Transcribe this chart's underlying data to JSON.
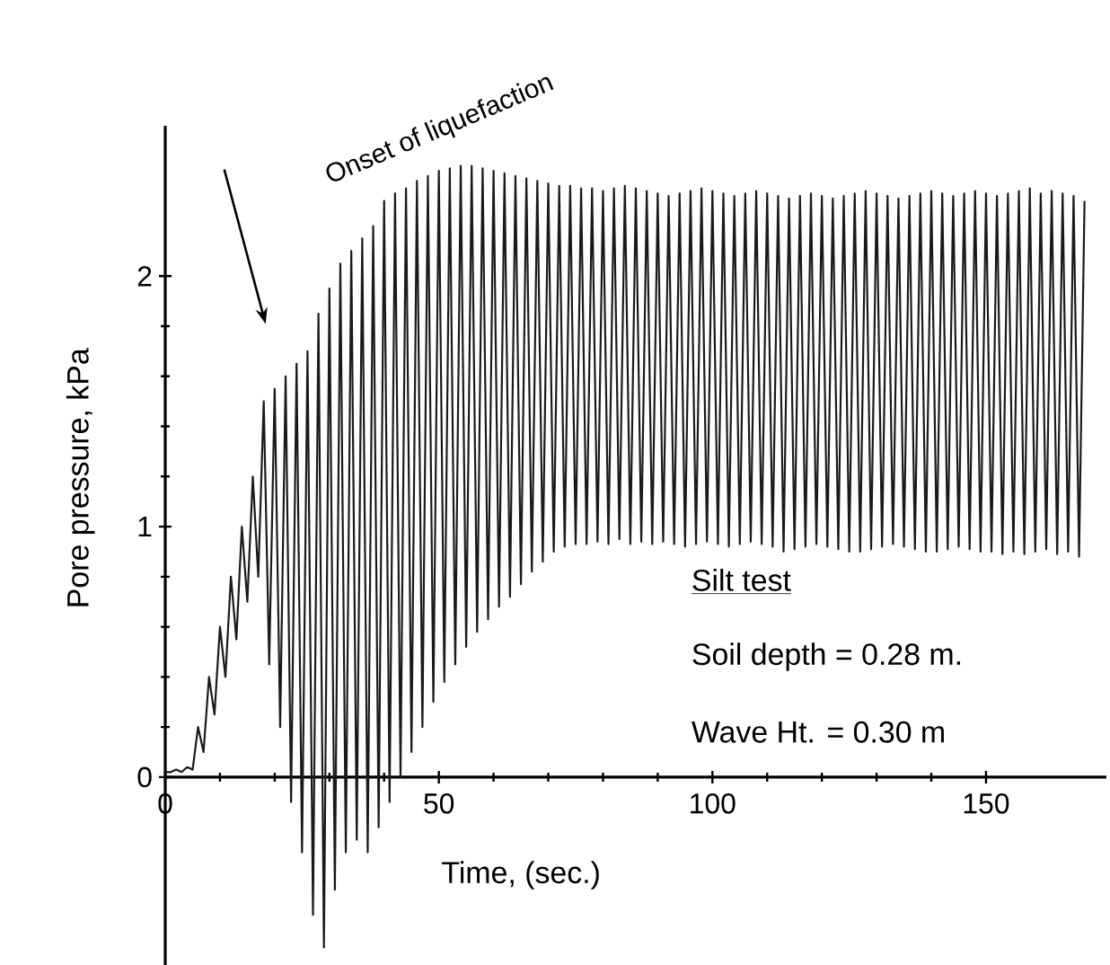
{
  "chart_data": {
    "type": "line",
    "xlabel": "Time, (sec.)",
    "ylabel": "Pore pressure, kPa",
    "annotations": [
      "Onset of liquefaction",
      "Silt test",
      "Soil depth = 0.28 m.",
      "Wave Ht. = 0.30 m"
    ],
    "xlim": [
      0,
      172
    ],
    "ylim": [
      -0.75,
      2.6
    ],
    "xticks": [
      0,
      50,
      100,
      150
    ],
    "yticks": [
      0,
      1,
      2
    ],
    "grid": false,
    "marker": "none",
    "line_style": "solid",
    "series": [
      {
        "color": "#1a1a1a",
        "x": [
          0,
          1,
          2,
          3,
          4,
          5,
          6,
          7,
          8,
          9,
          10,
          11,
          12,
          13,
          14,
          15,
          16,
          17,
          18,
          19,
          20,
          21,
          22,
          23,
          24,
          25,
          26,
          27,
          28,
          29,
          30,
          31,
          32,
          33,
          34,
          35,
          36,
          37,
          38,
          39,
          40,
          41,
          42,
          43,
          44,
          45,
          46,
          47,
          48,
          49,
          50,
          51,
          52,
          53,
          54,
          55,
          56,
          57,
          58,
          59,
          60,
          61,
          62,
          63,
          64,
          65,
          66,
          67,
          68,
          69,
          70,
          71,
          72,
          73,
          74,
          75,
          76,
          77,
          78,
          79,
          80,
          81,
          82,
          83,
          84,
          85,
          86,
          87,
          88,
          89,
          90,
          91,
          92,
          93,
          94,
          95,
          96,
          97,
          98,
          99,
          100,
          101,
          102,
          103,
          104,
          105,
          106,
          107,
          108,
          109,
          110,
          111,
          112,
          113,
          114,
          115,
          116,
          117,
          118,
          119,
          120,
          121,
          122,
          123,
          124,
          125,
          126,
          127,
          128,
          129,
          130,
          131,
          132,
          133,
          134,
          135,
          136,
          137,
          138,
          139,
          140,
          141,
          142,
          143,
          144,
          145,
          146,
          147,
          148,
          149,
          150,
          151,
          152,
          153,
          154,
          155,
          156,
          157,
          158,
          159,
          160,
          161,
          162,
          163,
          164,
          165,
          166,
          167,
          168
        ],
        "values": [
          0.02,
          0.02,
          0.03,
          0.02,
          0.04,
          0.03,
          0.2,
          0.1,
          0.4,
          0.25,
          0.6,
          0.4,
          0.8,
          0.55,
          1.0,
          0.7,
          1.2,
          0.8,
          1.5,
          0.45,
          1.55,
          0.2,
          1.6,
          -0.1,
          1.65,
          -0.3,
          1.7,
          -0.55,
          1.85,
          -0.68,
          1.95,
          -0.45,
          2.05,
          -0.3,
          2.1,
          -0.25,
          2.15,
          -0.3,
          2.2,
          -0.2,
          2.3,
          -0.1,
          2.33,
          0.0,
          2.35,
          0.1,
          2.38,
          0.2,
          2.4,
          0.3,
          2.42,
          0.38,
          2.43,
          0.45,
          2.44,
          0.52,
          2.44,
          0.58,
          2.43,
          0.63,
          2.42,
          0.68,
          2.41,
          0.72,
          2.4,
          0.77,
          2.39,
          0.82,
          2.38,
          0.86,
          2.37,
          0.9,
          2.36,
          0.92,
          2.36,
          0.93,
          2.35,
          0.93,
          2.35,
          0.94,
          2.34,
          0.93,
          2.35,
          0.95,
          2.36,
          0.93,
          2.35,
          0.94,
          2.34,
          0.93,
          2.33,
          0.94,
          2.32,
          0.93,
          2.33,
          0.92,
          2.34,
          0.93,
          2.35,
          0.94,
          2.34,
          0.93,
          2.33,
          0.92,
          2.32,
          0.93,
          2.33,
          0.94,
          2.34,
          0.93,
          2.33,
          0.92,
          2.32,
          0.9,
          2.31,
          0.91,
          2.32,
          0.92,
          2.33,
          0.93,
          2.32,
          0.92,
          2.31,
          0.91,
          2.32,
          0.9,
          2.33,
          0.9,
          2.34,
          0.91,
          2.33,
          0.92,
          2.32,
          0.93,
          2.31,
          0.92,
          2.32,
          0.91,
          2.33,
          0.9,
          2.34,
          0.9,
          2.33,
          0.91,
          2.32,
          0.92,
          2.33,
          0.91,
          2.34,
          0.9,
          2.33,
          0.9,
          2.32,
          0.89,
          2.33,
          0.9,
          2.34,
          0.89,
          2.35,
          0.9,
          2.33,
          0.91,
          2.34,
          0.89,
          2.33,
          0.9,
          2.32,
          0.88,
          2.3
        ]
      }
    ]
  }
}
